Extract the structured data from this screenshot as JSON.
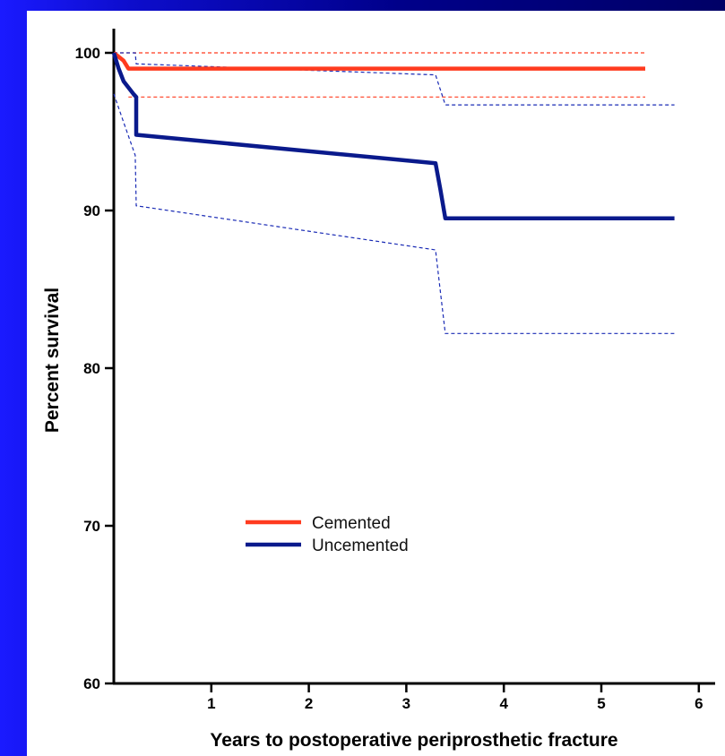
{
  "chart_data": {
    "type": "line",
    "title": "",
    "xlabel": "Years to postoperative periprosthetic fracture",
    "ylabel": "Percent survival",
    "xlim": [
      0,
      6.2
    ],
    "ylim": [
      60,
      102
    ],
    "x_ticks": [
      1,
      2,
      3,
      4,
      5,
      6
    ],
    "y_ticks": [
      60,
      70,
      80,
      90,
      100
    ],
    "grid": false,
    "legend_position": "lower-left",
    "series": [
      {
        "name": "Cemented",
        "color": "#ff3b1f",
        "style": "solid",
        "points": [
          [
            0,
            100
          ],
          [
            0.1,
            99.5
          ],
          [
            0.15,
            99.0
          ],
          [
            5.45,
            99.0
          ]
        ]
      },
      {
        "name": "Uncemented",
        "color": "#0a1a8c",
        "style": "solid",
        "points": [
          [
            0,
            100
          ],
          [
            0.05,
            99.0
          ],
          [
            0.1,
            98.2
          ],
          [
            0.2,
            97.4
          ],
          [
            0.23,
            97.2
          ],
          [
            0.23,
            94.8
          ],
          [
            3.3,
            93.0
          ],
          [
            3.35,
            91.3
          ],
          [
            3.4,
            89.5
          ],
          [
            5.75,
            89.5
          ]
        ]
      }
    ],
    "confidence_bands": [
      {
        "series": "Cemented",
        "color": "#ff3b1f",
        "upper": [
          [
            0,
            100
          ],
          [
            5.45,
            100
          ]
        ],
        "lower": [
          [
            0.15,
            97.2
          ],
          [
            5.45,
            97.2
          ]
        ]
      },
      {
        "series": "Uncemented",
        "color": "#1a2bb5",
        "upper": [
          [
            0,
            100
          ],
          [
            0.22,
            100
          ],
          [
            0.23,
            99.3
          ],
          [
            3.3,
            98.6
          ],
          [
            3.4,
            96.7
          ],
          [
            5.75,
            96.7
          ]
        ],
        "lower": [
          [
            0,
            97.4
          ],
          [
            0.1,
            95.6
          ],
          [
            0.22,
            93.5
          ],
          [
            0.23,
            90.3
          ],
          [
            3.3,
            87.5
          ],
          [
            3.35,
            84.8
          ],
          [
            3.4,
            82.2
          ],
          [
            5.75,
            82.2
          ]
        ]
      }
    ]
  }
}
